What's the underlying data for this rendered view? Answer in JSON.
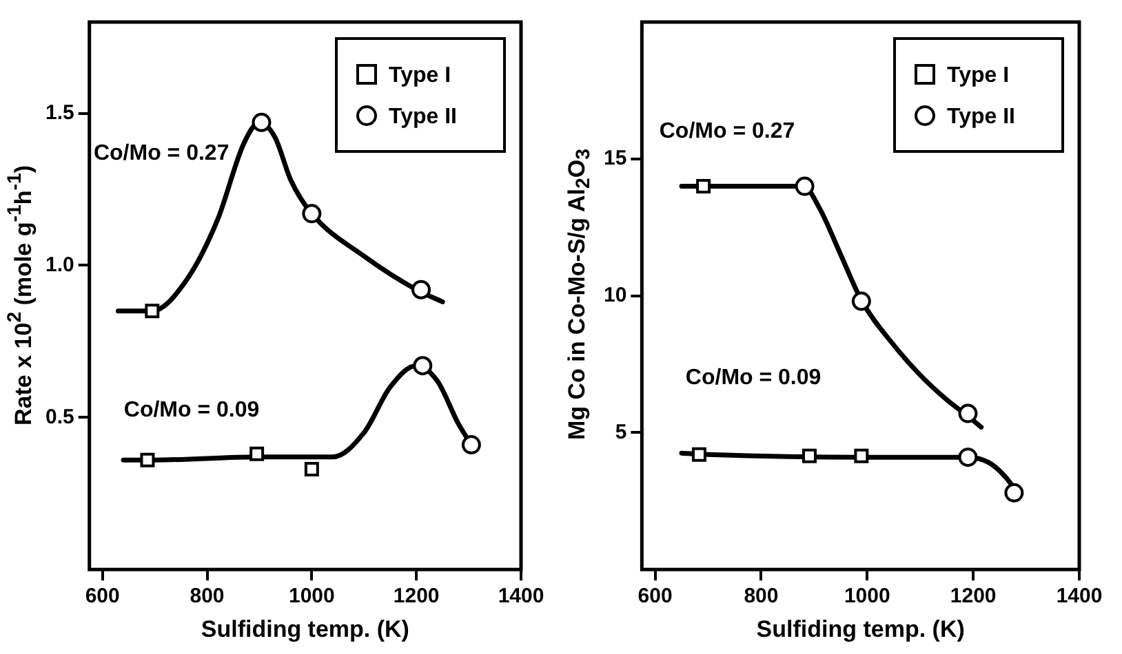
{
  "chart_data": [
    {
      "type": "line",
      "xlabel": "Sulfiding temp. (K)",
      "ylabel": "Rate x 10$^{2}$ (mole g$^{-1}$h$^{-1}$)",
      "xlim": [
        575,
        1400
      ],
      "xticks": [
        600,
        800,
        1000,
        1200,
        1400
      ],
      "ylim": [
        0,
        1.8
      ],
      "yticks": [
        {
          "value": 0.5,
          "label": "0.5"
        },
        {
          "value": 1.0,
          "label": "1.0"
        },
        {
          "value": 1.5,
          "label": "1.5"
        }
      ],
      "legend": "top right",
      "annotations": [
        "Co/Mo = 0.27",
        "Co/Mo = 0.09"
      ],
      "series": [
        {
          "color": "#000000",
          "marker": "none",
          "x": [
            630,
            695,
            760,
            820,
            870,
            900,
            930,
            960,
            1000,
            1100,
            1200,
            1250
          ],
          "values": [
            0.85,
            0.85,
            0.95,
            1.15,
            1.4,
            1.47,
            1.42,
            1.28,
            1.17,
            1.03,
            0.92,
            0.88
          ]
        },
        {
          "color": "#000000",
          "marker": "none",
          "x": [
            640,
            700,
            900,
            1040,
            1100,
            1150,
            1200,
            1240,
            1280,
            1305
          ],
          "values": [
            0.36,
            0.36,
            0.37,
            0.37,
            0.45,
            0.6,
            0.67,
            0.62,
            0.48,
            0.41
          ]
        },
        {
          "name": "Type I",
          "type": "scatter",
          "color": "#000000",
          "marker": "square",
          "x": [
            695,
            686,
            895,
            1000
          ],
          "values": [
            0.85,
            0.36,
            0.38,
            0.33
          ]
        },
        {
          "name": "Type II",
          "type": "scatter",
          "color": "#000000",
          "marker": "circle",
          "x": [
            904,
            1000,
            1209,
            1212,
            1305
          ],
          "values": [
            1.47,
            1.17,
            0.92,
            0.67,
            0.41
          ]
        }
      ]
    },
    {
      "type": "line",
      "xlabel": "Sulfiding temp. (K)",
      "ylabel": "Mg Co in Co-Mo-S/g Al$_{2}$O$_{3}$",
      "xlim": [
        575,
        1400
      ],
      "xticks": [
        600,
        800,
        1000,
        1200,
        1400
      ],
      "ylim": [
        0,
        20
      ],
      "yticks": [
        5,
        10,
        15
      ],
      "legend": "top right",
      "annotations": [
        "Co/Mo = 0.27",
        "Co/Mo = 0.09"
      ],
      "series": [
        {
          "color": "#000000",
          "marker": "none",
          "x": [
            650,
            690,
            880,
            910,
            950,
            990,
            1050,
            1100,
            1150,
            1190,
            1215
          ],
          "values": [
            14,
            14,
            14,
            13.2,
            11.5,
            9.8,
            8.2,
            7.1,
            6.2,
            5.6,
            5.2
          ]
        },
        {
          "color": "#000000",
          "marker": "none",
          "x": [
            650,
            700,
            1000,
            1190,
            1230,
            1260,
            1280
          ],
          "values": [
            4.25,
            4.2,
            4.1,
            4.1,
            3.9,
            3.4,
            2.9
          ]
        },
        {
          "name": "Type I",
          "type": "scatter",
          "color": "#000000",
          "marker": "square",
          "x": [
            691,
            683,
            891,
            989
          ],
          "values": [
            14.0,
            4.2,
            4.15,
            4.15
          ]
        },
        {
          "name": "Type II",
          "type": "scatter",
          "color": "#000000",
          "marker": "circle",
          "x": [
            882,
            989,
            1190,
            1190,
            1277
          ],
          "values": [
            14.0,
            9.8,
            5.7,
            4.1,
            2.8
          ]
        }
      ]
    }
  ]
}
